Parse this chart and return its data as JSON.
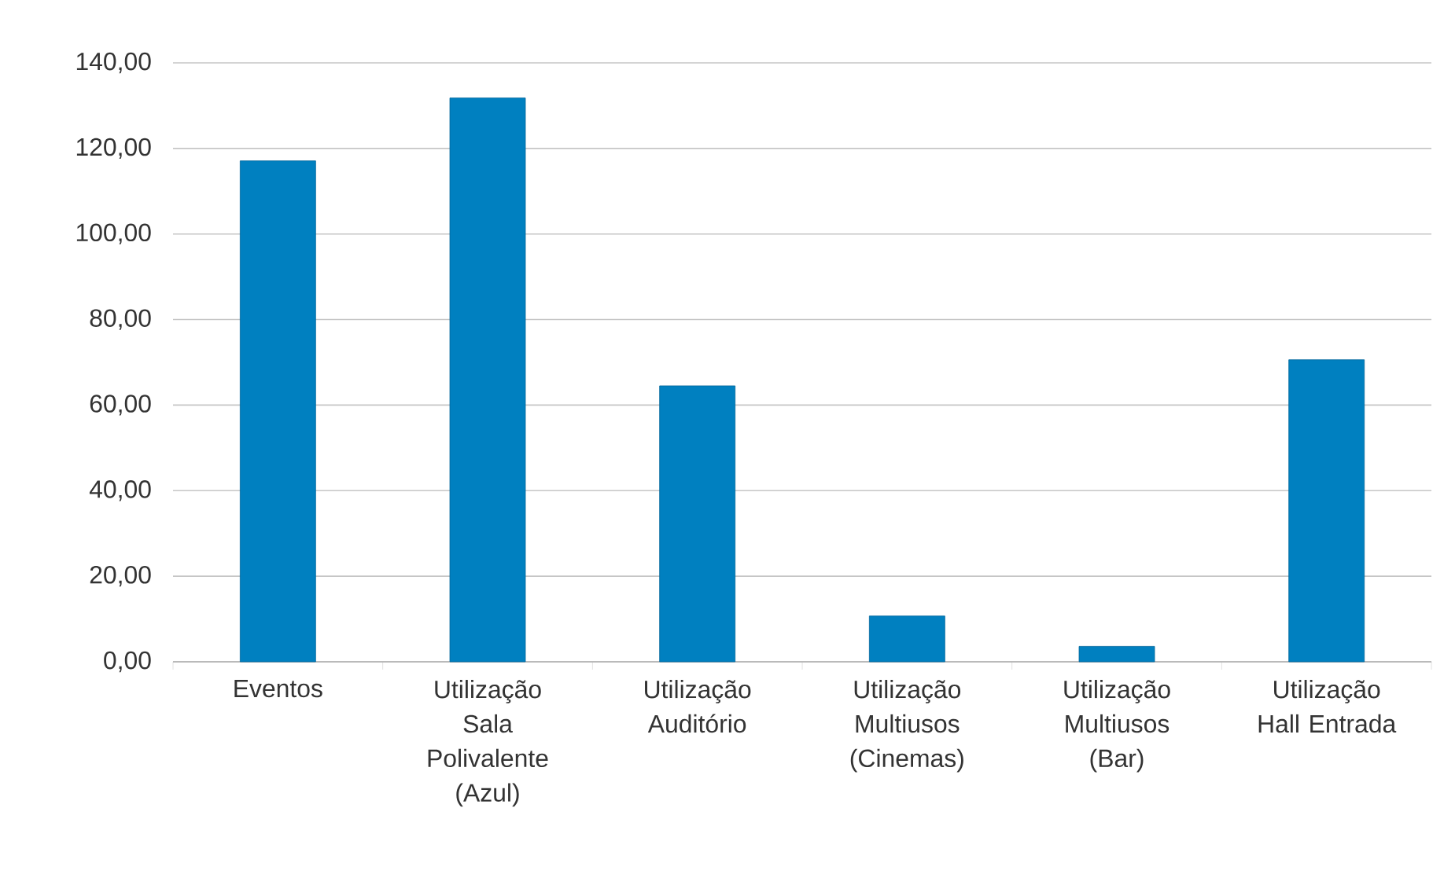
{
  "chart_data": {
    "type": "bar",
    "categories": [
      "Eventos",
      "Utilização Sala Polivalente (Azul)",
      "Utilização Auditório",
      "Utilização Multiusos (Cinemas)",
      "Utilização Multiusos (Bar)",
      "Utilização Hall Entrada"
    ],
    "values": [
      117.1,
      131.8,
      64.5,
      10.7,
      3.6,
      70.6
    ],
    "color": "#0080c0",
    "ylim": [
      0,
      140
    ],
    "yticks": [
      {
        "value": 0,
        "label": "0,00"
      },
      {
        "value": 20,
        "label": "20,00"
      },
      {
        "value": 40,
        "label": "40,00"
      },
      {
        "value": 60,
        "label": "60,00"
      },
      {
        "value": 80,
        "label": "80,00"
      },
      {
        "value": 100,
        "label": "100,00"
      },
      {
        "value": 120,
        "label": "120,00"
      },
      {
        "value": 140,
        "label": "140,00"
      }
    ],
    "grid": "y"
  }
}
